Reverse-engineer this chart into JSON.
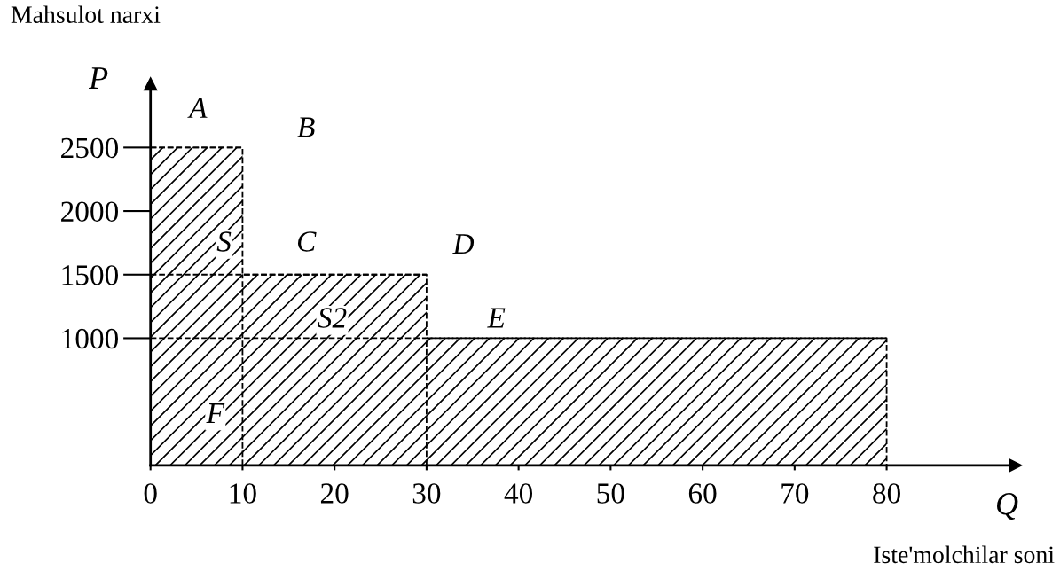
{
  "chart_data": {
    "type": "area",
    "xlabel": "Q",
    "ylabel": "P",
    "x": [
      0,
      10,
      10,
      30,
      30,
      80,
      80
    ],
    "values": [
      2500,
      2500,
      1500,
      1500,
      1000,
      1000,
      0
    ],
    "color": "#000000",
    "line_style": "dashed",
    "xlim": [
      0,
      94
    ],
    "ylim": [
      0,
      3000
    ],
    "xticks": [
      0,
      10,
      20,
      30,
      40,
      50,
      60,
      70,
      80
    ],
    "yticks": [
      1000,
      1500,
      2000,
      2500
    ],
    "ref_lines": [
      {
        "axis": "x",
        "value": 10
      },
      {
        "axis": "x",
        "value": 30
      }
    ],
    "annotations": [
      "Mahsulot narxi",
      "Iste'molchilar soni",
      "A",
      "B",
      "C",
      {
        "text": "D",
        "x": 30,
        "y": 1500
      },
      "E",
      "S",
      "S2",
      "F"
    ]
  }
}
